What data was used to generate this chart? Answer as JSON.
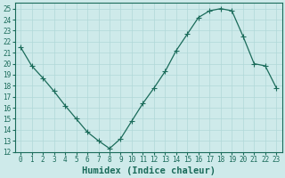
{
  "x": [
    0,
    1,
    2,
    3,
    4,
    5,
    6,
    7,
    8,
    9,
    10,
    11,
    12,
    13,
    14,
    15,
    16,
    17,
    18,
    19,
    20,
    21,
    22,
    23
  ],
  "y": [
    21.5,
    19.8,
    18.7,
    17.5,
    16.2,
    15.0,
    13.8,
    13.0,
    12.3,
    13.2,
    14.8,
    16.4,
    17.8,
    19.3,
    21.2,
    22.7,
    24.2,
    24.8,
    25.0,
    24.8,
    22.5,
    20.0,
    19.8,
    17.8
  ],
  "line_color": "#1a6b5a",
  "marker": "+",
  "marker_size": 4,
  "marker_linewidth": 0.8,
  "line_width": 0.9,
  "bg_color": "#ceeaea",
  "grid_color": "#b0d8d8",
  "xlabel": "Humidex (Indice chaleur)",
  "xlim": [
    -0.5,
    23.5
  ],
  "ylim": [
    12,
    25.5
  ],
  "yticks": [
    12,
    13,
    14,
    15,
    16,
    17,
    18,
    19,
    20,
    21,
    22,
    23,
    24,
    25
  ],
  "xticks": [
    0,
    1,
    2,
    3,
    4,
    5,
    6,
    7,
    8,
    9,
    10,
    11,
    12,
    13,
    14,
    15,
    16,
    17,
    18,
    19,
    20,
    21,
    22,
    23
  ],
  "tick_fontsize": 5.5,
  "label_fontsize": 7.5,
  "label_color": "#1a6b5a",
  "tick_color": "#1a6b5a",
  "spine_color": "#1a6b5a",
  "grid_linewidth": 0.5
}
